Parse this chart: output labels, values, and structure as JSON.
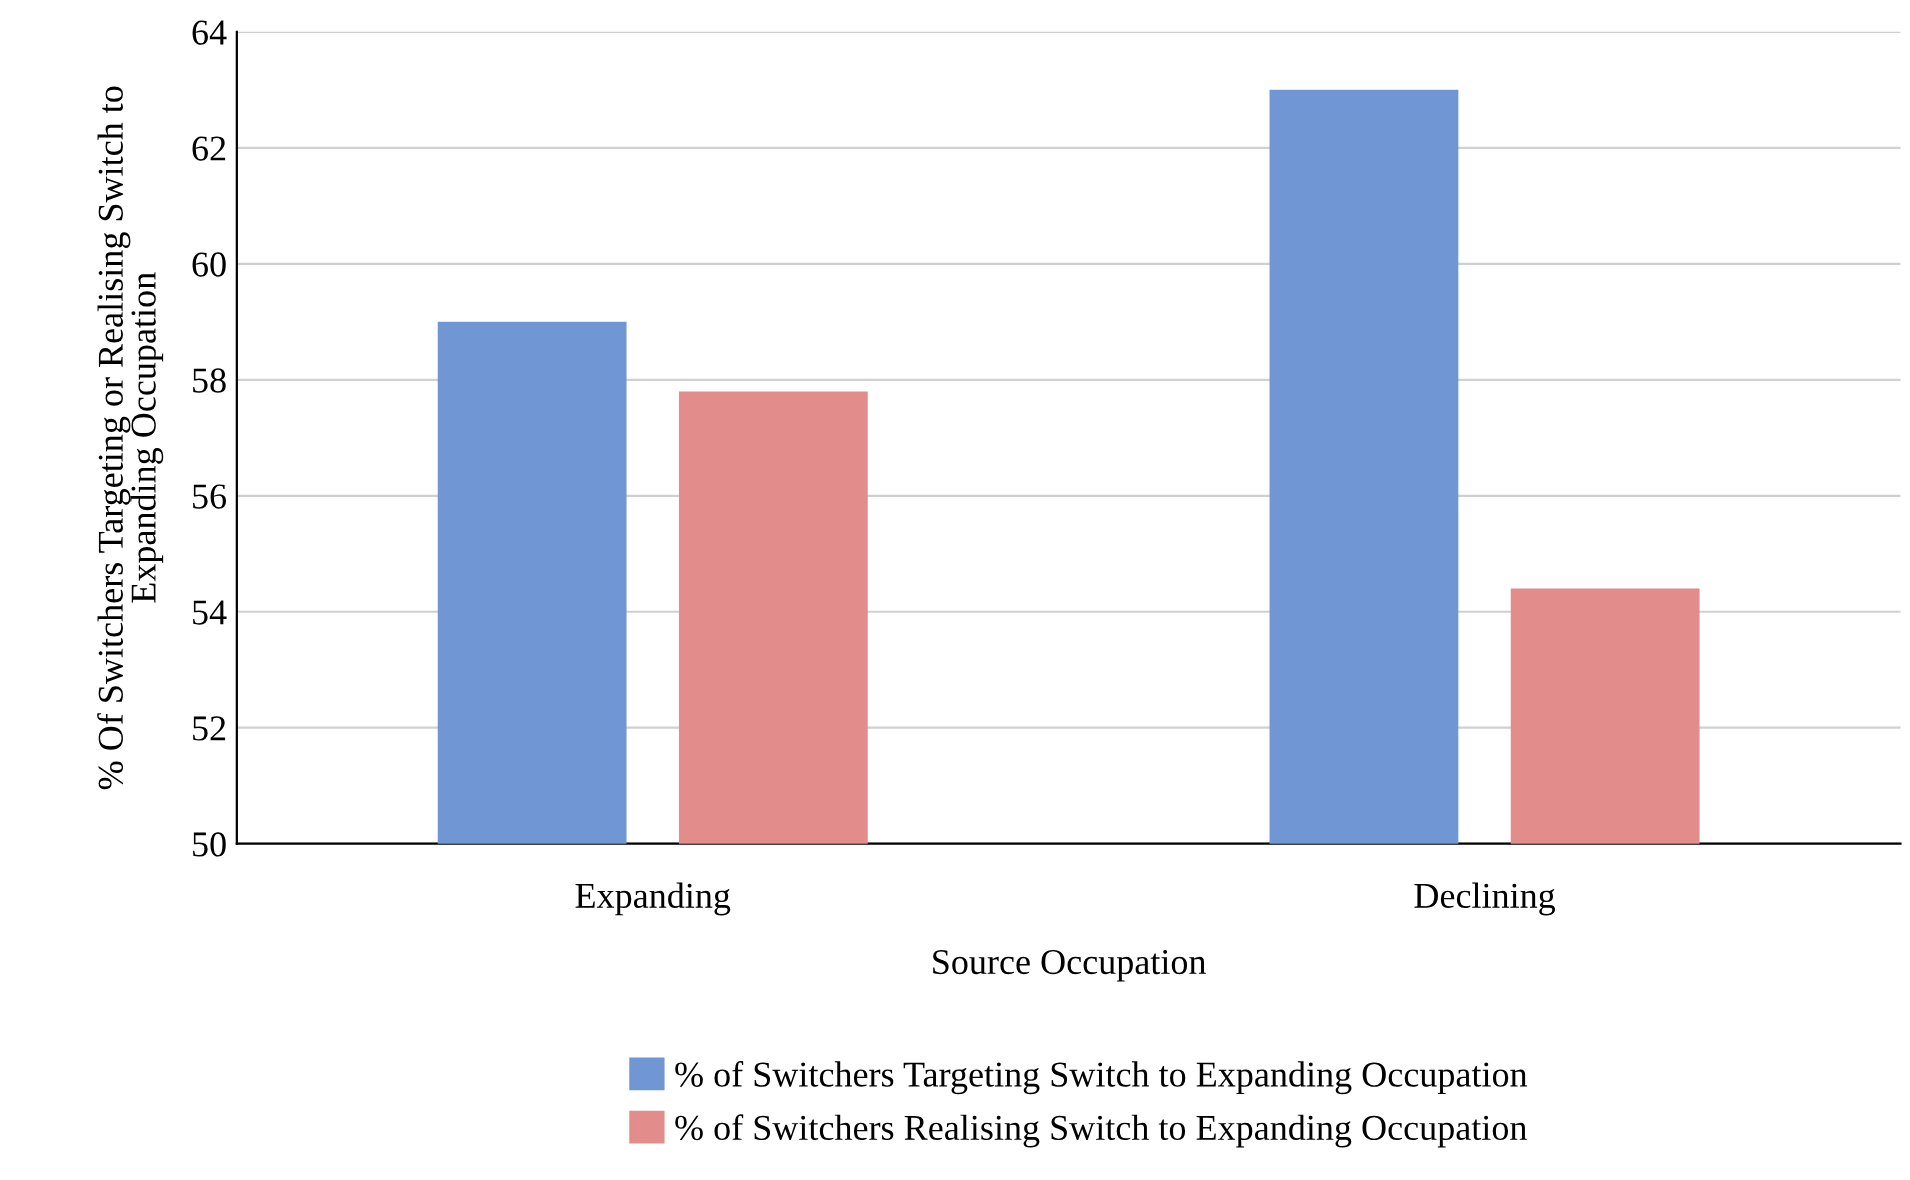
{
  "chart_data": {
    "type": "bar",
    "xlabel": "Source Occupation",
    "ylabel": "% Of Switchers Targeting or Realising Switch to\nExpanding Occupation",
    "categories": [
      "Expanding",
      "Declining"
    ],
    "series": [
      {
        "name": "% of Switchers Targeting Switch to Expanding Occupation",
        "color": "#7096d4",
        "values": [
          59.0,
          63.0
        ]
      },
      {
        "name": "% of Switchers Realising Switch to Expanding Occupation",
        "color": "#e38c8c",
        "values": [
          57.8,
          54.4
        ]
      }
    ],
    "ylim": [
      50,
      64
    ],
    "yticks": [
      50,
      52,
      54,
      56,
      58,
      60,
      62,
      64
    ],
    "grid": "y",
    "legend": "bottom"
  }
}
